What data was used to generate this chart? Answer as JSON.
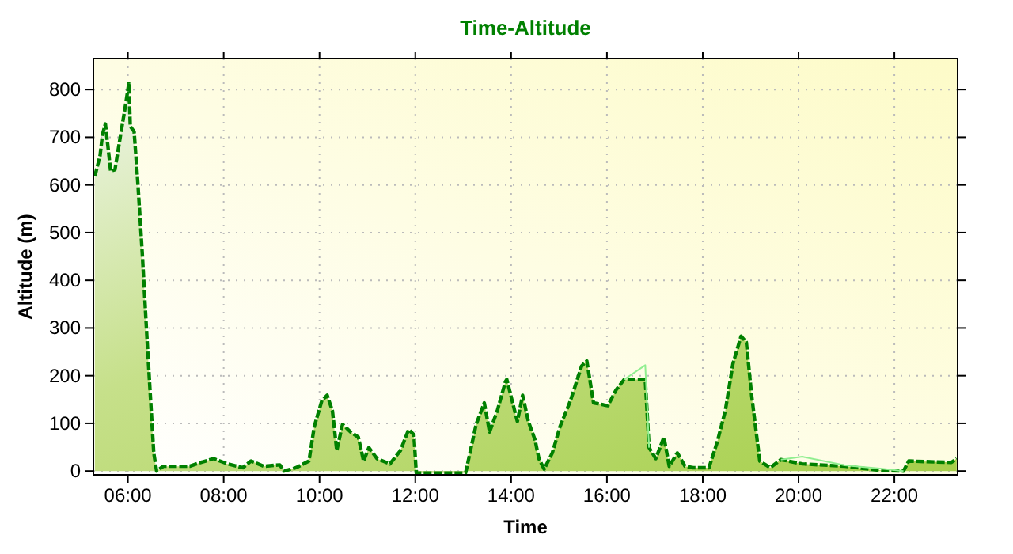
{
  "chart_data": {
    "type": "area",
    "title": "Time-Altitude",
    "xlabel": "Time",
    "ylabel": "Altitude (m)",
    "xlim": [
      5.28,
      23.32
    ],
    "ylim": [
      -8,
      865
    ],
    "xticks": [
      {
        "value": 6,
        "label": "06:00"
      },
      {
        "value": 8,
        "label": "08:00"
      },
      {
        "value": 10,
        "label": "10:00"
      },
      {
        "value": 12,
        "label": "12:00"
      },
      {
        "value": 14,
        "label": "14:00"
      },
      {
        "value": 16,
        "label": "16:00"
      },
      {
        "value": 18,
        "label": "18:00"
      },
      {
        "value": 20,
        "label": "20:00"
      },
      {
        "value": 22,
        "label": "22:00"
      }
    ],
    "yticks": [
      0,
      100,
      200,
      300,
      400,
      500,
      600,
      700,
      800
    ],
    "grid": true,
    "series": [
      {
        "color": "#008000",
        "line_style": "dashed",
        "x": [
          5.31,
          5.42,
          5.47,
          5.53,
          5.58,
          5.64,
          5.73,
          5.84,
          5.95,
          6.02,
          6.05,
          6.13,
          6.21,
          6.3,
          6.41,
          6.54,
          6.6,
          6.74,
          7.29,
          7.52,
          7.79,
          8.08,
          8.4,
          8.57,
          8.84,
          9.17,
          9.26,
          9.51,
          9.78,
          9.89,
          10.05,
          10.16,
          10.27,
          10.36,
          10.48,
          10.65,
          10.81,
          10.92,
          11.03,
          11.2,
          11.47,
          11.69,
          11.86,
          11.97,
          12.02,
          13.05,
          13.27,
          13.44,
          13.55,
          13.71,
          13.88,
          13.91,
          14.02,
          14.13,
          14.24,
          14.36,
          14.5,
          14.58,
          14.69,
          14.86,
          15.02,
          15.24,
          15.47,
          15.58,
          15.72,
          16.02,
          16.19,
          16.36,
          16.8,
          16.88,
          17.02,
          17.19,
          17.3,
          17.47,
          17.63,
          17.8,
          18.13,
          18.3,
          18.47,
          18.63,
          18.8,
          18.91,
          19.02,
          19.19,
          19.41,
          19.63,
          20.08,
          20.97,
          21.74,
          22.19,
          22.3,
          23.19,
          23.3
        ],
        "values": [
          618,
          662,
          706,
          728,
          684,
          629,
          632,
          700,
          767,
          813,
          723,
          712,
          601,
          457,
          258,
          38,
          0,
          10,
          10,
          18,
          26,
          15,
          7,
          21,
          10,
          13,
          0,
          7,
          21,
          93,
          148,
          159,
          126,
          43,
          98,
          82,
          71,
          21,
          49,
          26,
          15,
          43,
          87,
          76,
          -4,
          -4,
          98,
          143,
          82,
          126,
          187,
          192,
          148,
          104,
          159,
          104,
          65,
          26,
          4,
          38,
          93,
          148,
          220,
          231,
          143,
          137,
          170,
          192,
          192,
          49,
          26,
          71,
          10,
          38,
          10,
          7,
          7,
          60,
          126,
          225,
          283,
          270,
          159,
          21,
          7,
          24,
          15,
          10,
          1,
          0,
          21,
          18,
          26
        ]
      },
      {
        "type": "line",
        "color": "#90ee90",
        "x": [
          16.36,
          16.8,
          16.88
        ],
        "values": [
          192,
          222,
          49
        ]
      },
      {
        "type": "line",
        "color": "#90ee90",
        "x": [
          19.63,
          20.08,
          20.97,
          21.74,
          22.19
        ],
        "values": [
          24,
          30,
          12,
          5,
          0
        ]
      }
    ]
  }
}
